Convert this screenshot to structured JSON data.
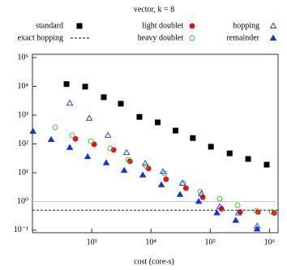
{
  "chart_data": {
    "type": "scatter",
    "title": "vector, k = 8",
    "x_label": "cost (core-s)",
    "log_x": true,
    "log_y": true,
    "xlim": [
      100,
      1400000
    ],
    "ylim": [
      0.082,
      130000
    ],
    "xticks": [
      {
        "value": 1000,
        "label": "10³"
      },
      {
        "value": 10000,
        "label": "10⁴"
      },
      {
        "value": 100000,
        "label": "10⁵"
      },
      {
        "value": 1000000,
        "label": "10⁶"
      }
    ],
    "yticks": [
      {
        "value": 0.1,
        "label": "10⁻¹"
      },
      {
        "value": 1,
        "label": "10⁰"
      },
      {
        "value": 10,
        "label": "10¹"
      },
      {
        "value": 100,
        "label": "10²"
      },
      {
        "value": 1000,
        "label": "10³"
      },
      {
        "value": 10000,
        "label": "10⁴"
      },
      {
        "value": 100000,
        "label": "10⁵"
      }
    ],
    "reference_line": {
      "value": 1,
      "color": "#c8c8c8"
    },
    "series": [
      {
        "name": "standard",
        "color": "#000000",
        "marker": "square",
        "filled": true,
        "x": [
          376,
          776,
          1600,
          3100,
          6400,
          13000,
          26000,
          51000,
          103000,
          213000,
          437000,
          900000
        ],
        "values": [
          12000,
          9800,
          4200,
          2500,
          870,
          560,
          290,
          160,
          80,
          47,
          30,
          19
        ]
      },
      {
        "name": "exact hopping",
        "color": "#000000",
        "marker": "dashed-line",
        "line_value": 0.5
      },
      {
        "name": "light doublet",
        "color": "#ee1111",
        "marker": "circle",
        "filled": true,
        "x": [
          532,
          1100,
          2340,
          4420,
          9100,
          18000,
          39000,
          75000,
          155000,
          320000,
          640000,
          1200000
        ],
        "values": [
          150,
          97,
          62,
          25,
          14,
          5.9,
          2.9,
          1.4,
          0.56,
          0.43,
          0.43,
          0.4
        ]
      },
      {
        "name": "heavy doublet",
        "color": "#22cc22",
        "marker": "circle",
        "filled": false,
        "x": [
          242,
          469,
          970,
          2060,
          4140,
          8300,
          17000,
          35000,
          68000,
          145000,
          290000,
          600000,
          1100000
        ],
        "values": [
          380,
          200,
          125,
          70,
          28,
          17,
          9.3,
          4.3,
          2.2,
          1.25,
          0.74,
          0.48,
          0.43
        ]
      },
      {
        "name": "hopping",
        "color": "#1133dd",
        "marker": "triangle",
        "filled": false,
        "x": [
          427,
          910,
          1880,
          3880,
          8000,
          16000,
          34000,
          71000,
          145000,
          300000,
          620000
        ],
        "values": [
          2600,
          780,
          200,
          50,
          21,
          11,
          4.3,
          1.85,
          0.66,
          0.4,
          0.14
        ]
      },
      {
        "name": "remainder",
        "color": "#1133dd",
        "marker": "triangle",
        "filled": true,
        "x": [
          102,
          207,
          427,
          855,
          1760,
          3540,
          7300,
          15000,
          31000,
          64000,
          130000,
          270000,
          620000
        ],
        "values": [
          275,
          142,
          75,
          36,
          22,
          12,
          8.3,
          3.8,
          1.75,
          1.0,
          0.4,
          0.22,
          0.11
        ]
      }
    ]
  }
}
